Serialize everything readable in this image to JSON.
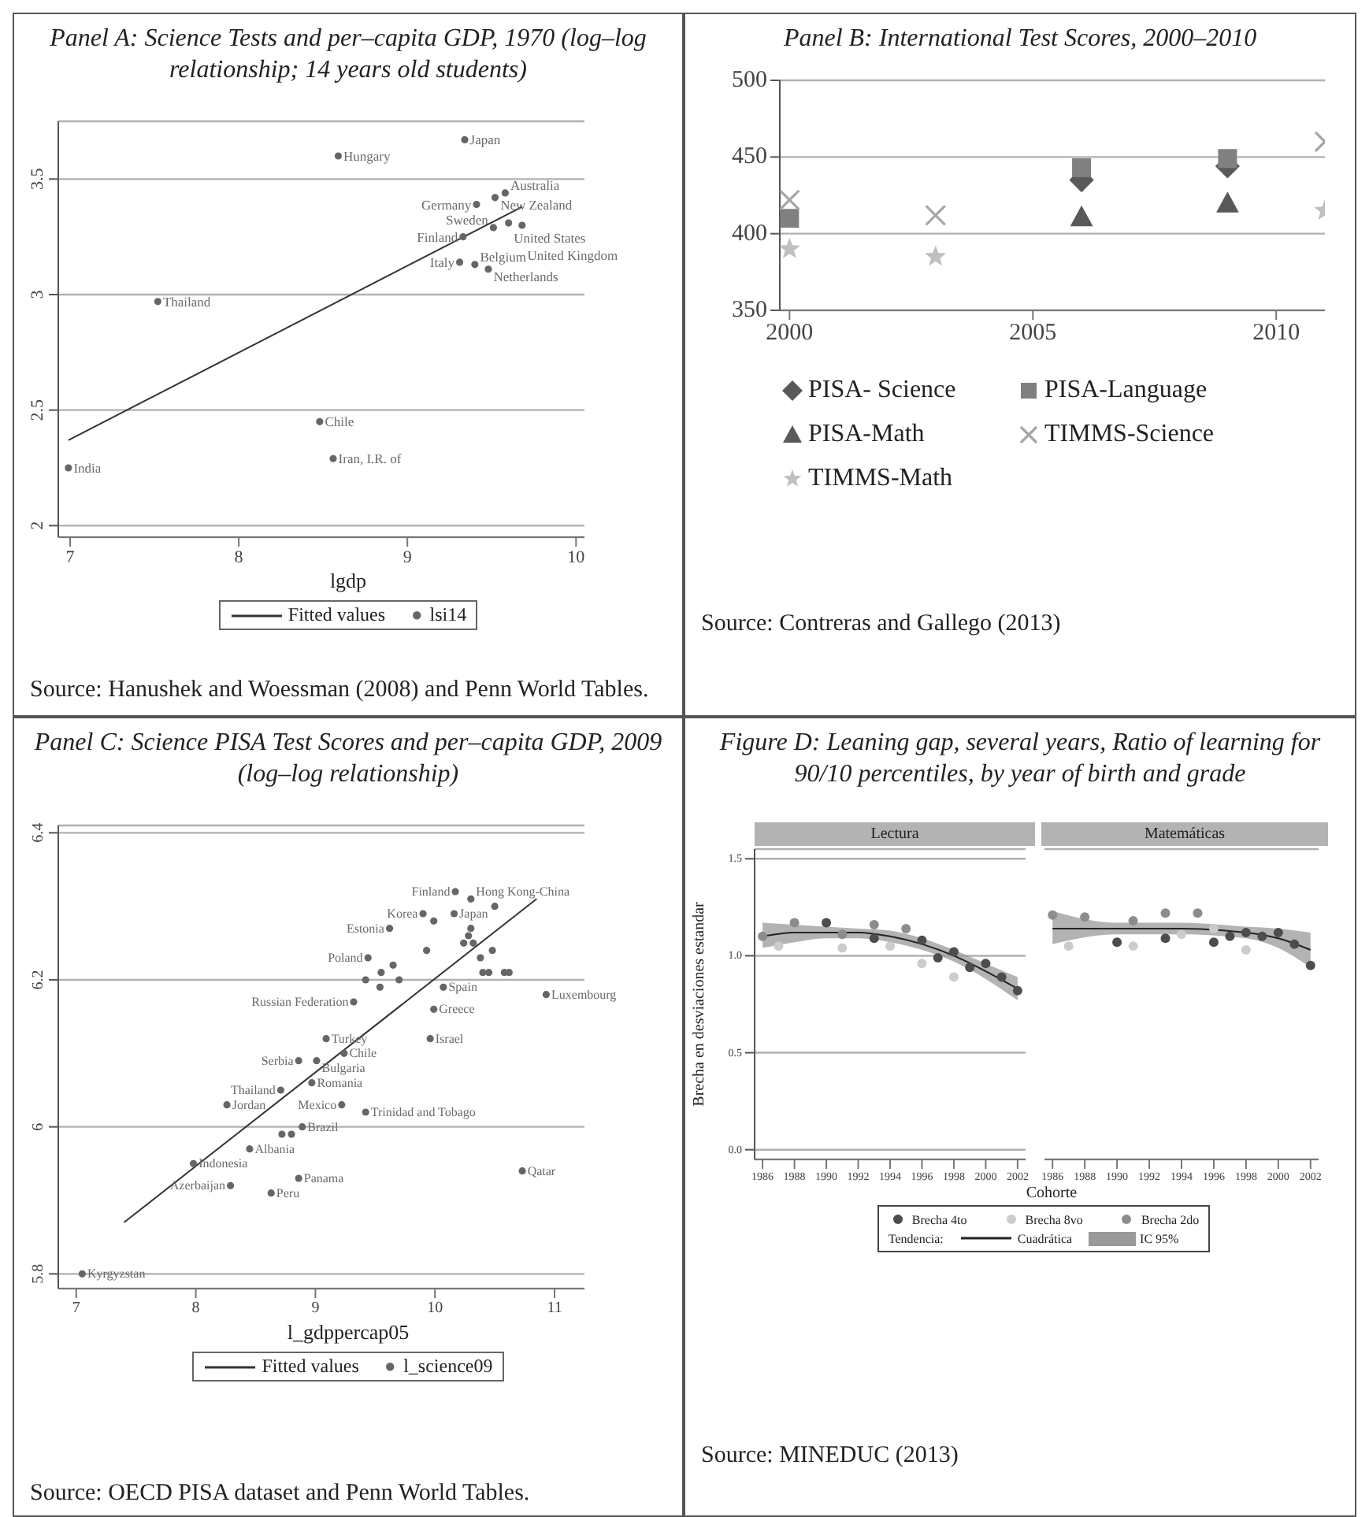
{
  "chart_data": [
    {
      "type": "scatter",
      "title": "Panel A: Science Tests and per–capita GDP, 1970 (log–log relationship; 14 years old students)",
      "xlabel": "lgdp",
      "xlim": [
        6.93,
        10.05
      ],
      "xticks": [
        7,
        8,
        9,
        10
      ],
      "ylim": [
        1.95,
        3.75
      ],
      "yticks": [
        2,
        2.5,
        3,
        3.5
      ],
      "grid": "y",
      "legend": "bottom",
      "annotations": [
        "Source: Hanushek and Woessman (2008) and Penn World Tables."
      ],
      "series": [
        {
          "name": "Fitted values",
          "type": "line",
          "color": "#333333",
          "x": [
            6.99,
            9.68
          ],
          "values": [
            2.37,
            3.38
          ]
        },
        {
          "name": "lsi14",
          "type": "scatter",
          "marker": "circle",
          "color": "#666666",
          "x": [
            6.99,
            7.52,
            8.59,
            9.34,
            8.48,
            8.56,
            9.41,
            9.33,
            9.31,
            9.4,
            9.48,
            9.52,
            9.58,
            9.51,
            9.6,
            9.68
          ],
          "values": [
            2.25,
            2.97,
            3.6,
            3.67,
            2.45,
            2.29,
            3.39,
            3.25,
            3.14,
            3.13,
            3.11,
            3.42,
            3.44,
            3.29,
            3.31,
            3.3
          ],
          "value_labels": [
            "India",
            "Thailand",
            "Hungary",
            "Japan",
            "Chile",
            "Iran, I.R. of",
            "Germany",
            "Finland",
            "Italy",
            "Belgium",
            "Netherlands",
            "New Zealand",
            "Australia",
            "Sweden",
            "United States",
            "United Kingdom"
          ]
        }
      ]
    },
    {
      "type": "scatter",
      "title": "Panel B: International Test Scores, 2000–2010",
      "xlim": [
        1999.8,
        2011
      ],
      "xticks": [
        2000,
        2005,
        2010
      ],
      "ylim": [
        350,
        500
      ],
      "yticks": [
        350,
        400,
        450,
        500
      ],
      "grid": "y",
      "legend": "bottom",
      "annotations": [
        "Source: Contreras and Gallego (2013)"
      ],
      "series": [
        {
          "name": "PISA- Science",
          "marker": "diamond",
          "color": "#595959",
          "x": [
            2006,
            2009
          ],
          "values": [
            435,
            444
          ]
        },
        {
          "name": "PISA-Language",
          "marker": "square",
          "color": "#808080",
          "x": [
            2000,
            2006,
            2009
          ],
          "values": [
            410,
            443,
            449
          ]
        },
        {
          "name": "PISA-Math",
          "marker": "triangle",
          "color": "#595959",
          "x": [
            2006,
            2009
          ],
          "values": [
            411,
            420
          ]
        },
        {
          "name": "TIMMS-Science",
          "marker": "cross",
          "color": "#a6a6a6",
          "x": [
            2000,
            2003,
            2011
          ],
          "values": [
            422,
            412,
            460
          ]
        },
        {
          "name": "TIMMS-Math",
          "marker": "star",
          "color": "#bfbfbf",
          "x": [
            2000,
            2003,
            2011
          ],
          "values": [
            390,
            385,
            415
          ]
        }
      ]
    },
    {
      "type": "scatter",
      "title": "Panel C: Science PISA Test Scores and per–capita GDP, 2009 (log–log relationship)",
      "xlabel": "l_gdppercap05",
      "xlim": [
        6.85,
        11.25
      ],
      "xticks": [
        7,
        8,
        9,
        10,
        11
      ],
      "ylim": [
        5.78,
        6.41
      ],
      "yticks": [
        5.8,
        6,
        6.2,
        6.4
      ],
      "grid": "y",
      "legend": "bottom",
      "annotations": [
        "Source: OECD PISA dataset and Penn World Tables."
      ],
      "series": [
        {
          "name": "Fitted values",
          "type": "line",
          "color": "#333333",
          "x": [
            7.4,
            10.85
          ],
          "values": [
            5.87,
            6.31
          ]
        },
        {
          "name": "l_science09",
          "type": "scatter",
          "marker": "circle",
          "color": "#666666",
          "x": [
            10.17,
            10.3,
            10.5,
            10.16,
            9.9,
            9.99,
            9.62,
            10.3,
            10.28,
            10.32,
            10.24,
            9.44,
            9.93,
            10.38,
            10.48,
            10.58,
            10.62,
            10.45,
            10.4,
            9.65,
            9.55,
            9.42,
            9.54,
            9.7,
            10.07,
            9.32,
            9.99,
            9.96,
            10.93,
            9.09,
            9.24,
            8.86,
            9.01,
            8.71,
            8.97,
            8.26,
            9.22,
            9.42,
            8.89,
            8.72,
            8.8,
            8.45,
            7.98,
            8.29,
            8.86,
            8.63,
            10.73,
            7.05
          ],
          "values": [
            6.32,
            6.31,
            6.3,
            6.29,
            6.29,
            6.28,
            6.27,
            6.27,
            6.26,
            6.25,
            6.25,
            6.23,
            6.24,
            6.23,
            6.24,
            6.21,
            6.21,
            6.21,
            6.21,
            6.22,
            6.21,
            6.2,
            6.19,
            6.2,
            6.19,
            6.17,
            6.16,
            6.12,
            6.18,
            6.12,
            6.1,
            6.09,
            6.09,
            6.05,
            6.06,
            6.03,
            6.03,
            6.02,
            6.0,
            5.99,
            5.99,
            5.97,
            5.95,
            5.92,
            5.93,
            5.91,
            5.94,
            5.8
          ],
          "value_labels": [
            "Finland",
            "Hong Kong-China",
            null,
            "Japan",
            "Korea",
            null,
            "Estonia",
            null,
            null,
            null,
            null,
            "Poland",
            null,
            null,
            null,
            null,
            null,
            null,
            null,
            null,
            null,
            null,
            null,
            null,
            "Spain",
            "Russian Federation",
            "Greece",
            "Israel",
            "Luxembourg",
            "Turkey",
            "Chile",
            "Serbia",
            "Bulgaria",
            "Thailand",
            "Romania",
            "Jordan",
            "Mexico",
            "Trinidad and Tobago",
            "Brazil",
            null,
            null,
            "Albania",
            "Indonesia",
            "Azerbaijan",
            "Panama",
            "Peru",
            "Qatar",
            "Kyrgyzstan"
          ]
        }
      ]
    },
    {
      "type": "scatter",
      "title": "Figure D: Leaning gap, several years, Ratio of learning for 90/10 percentiles, by year of birth and grade",
      "subtitle": "Lectura",
      "xlabel": "Cohorte",
      "ylabel": "Brecha en desviaciones estandar",
      "xlim": [
        1985.5,
        2002.5
      ],
      "xticks": [
        1986,
        1988,
        1990,
        1992,
        1994,
        1996,
        1998,
        2000,
        2002
      ],
      "ylim": [
        -0.05,
        1.55
      ],
      "yticks": [
        {
          "value": 0,
          "label": "0.0"
        },
        {
          "value": 0.5,
          "label": "0.5"
        },
        {
          "value": 1,
          "label": "1.0"
        },
        {
          "value": 1.5,
          "label": "1.5"
        }
      ],
      "grid": "y",
      "legend": "bottom",
      "legend_title": "Tendencia:",
      "annotations": [
        "Source: MINEDUC (2013)",
        "IC 95%"
      ],
      "series": [
        {
          "name": "Brecha 4to",
          "marker": "circle",
          "color": "#4d4d4d",
          "x": [
            1990,
            1993,
            1996,
            1997,
            1998,
            1999,
            2000,
            2001,
            2002
          ],
          "values": [
            1.17,
            1.09,
            1.08,
            0.99,
            1.02,
            0.94,
            0.96,
            0.89,
            0.82
          ]
        },
        {
          "name": "Brecha 8vo",
          "marker": "circle",
          "color": "#cccccc",
          "x": [
            1987,
            1991,
            1994,
            1996,
            1998
          ],
          "values": [
            1.05,
            1.04,
            1.05,
            0.96,
            0.89
          ]
        },
        {
          "name": "Brecha 2do",
          "marker": "circle",
          "color": "#8c8c8c",
          "x": [
            1986,
            1988,
            1991,
            1993,
            1995
          ],
          "values": [
            1.1,
            1.17,
            1.11,
            1.16,
            1.14
          ]
        },
        {
          "name": "Cuadrática",
          "type": "line",
          "color": "#222222",
          "x": [
            1986,
            1988,
            1990,
            1992,
            1994,
            1996,
            1998,
            2000,
            2002
          ],
          "values": [
            1.1,
            1.12,
            1.12,
            1.12,
            1.1,
            1.06,
            1.0,
            0.92,
            0.83
          ],
          "lower": [
            1.04,
            1.07,
            1.09,
            1.09,
            1.07,
            1.03,
            0.97,
            0.88,
            0.77
          ],
          "upper": [
            1.17,
            1.16,
            1.15,
            1.14,
            1.13,
            1.09,
            1.03,
            0.96,
            0.89
          ]
        }
      ]
    },
    {
      "type": "scatter",
      "subtitle": "Matemáticas",
      "xlim": [
        1985.5,
        2002.5
      ],
      "xticks": [
        1986,
        1988,
        1990,
        1992,
        1994,
        1996,
        1998,
        2000,
        2002
      ],
      "ylim": [
        -0.05,
        1.55
      ],
      "yticks": [
        0,
        0.5,
        1,
        1.5
      ],
      "grid": "y",
      "tick_labels": "x",
      "series": [
        {
          "marker": "circle",
          "color": "#4d4d4d",
          "x": [
            1990,
            1993,
            1996,
            1997,
            1998,
            1999,
            2000,
            2001,
            2002
          ],
          "values": [
            1.07,
            1.09,
            1.07,
            1.1,
            1.12,
            1.1,
            1.12,
            1.06,
            0.95
          ]
        },
        {
          "marker": "circle",
          "color": "#cccccc",
          "x": [
            1987,
            1991,
            1994,
            1996,
            1998
          ],
          "values": [
            1.05,
            1.05,
            1.11,
            1.14,
            1.03
          ]
        },
        {
          "marker": "circle",
          "color": "#8c8c8c",
          "x": [
            1986,
            1988,
            1991,
            1993,
            1995
          ],
          "values": [
            1.21,
            1.2,
            1.18,
            1.22,
            1.22
          ]
        },
        {
          "type": "line",
          "color": "#222222",
          "x": [
            1986,
            1990,
            1994,
            1998,
            2000,
            2002
          ],
          "values": [
            1.14,
            1.14,
            1.14,
            1.12,
            1.09,
            1.03
          ],
          "lower": [
            1.06,
            1.11,
            1.11,
            1.09,
            1.04,
            0.94
          ],
          "upper": [
            1.23,
            1.17,
            1.17,
            1.15,
            1.14,
            1.12
          ]
        }
      ]
    }
  ]
}
